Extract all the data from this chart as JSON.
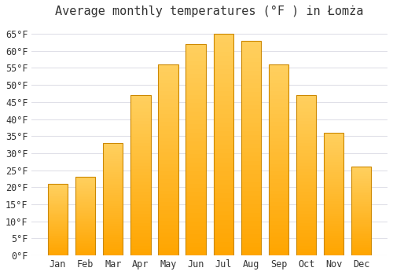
{
  "title": "Average monthly temperatures (°F ) in Łomża",
  "months": [
    "Jan",
    "Feb",
    "Mar",
    "Apr",
    "May",
    "Jun",
    "Jul",
    "Aug",
    "Sep",
    "Oct",
    "Nov",
    "Dec"
  ],
  "values": [
    21,
    23,
    33,
    47,
    56,
    62,
    65,
    63,
    56,
    47,
    36,
    26
  ],
  "bar_color_top": "#FFD060",
  "bar_color_bottom": "#FFA500",
  "bar_edge_color": "#CC8800",
  "background_color": "#FFFFFF",
  "grid_color": "#E0E0E8",
  "text_color": "#333333",
  "ylim": [
    0,
    68
  ],
  "yticks": [
    0,
    5,
    10,
    15,
    20,
    25,
    30,
    35,
    40,
    45,
    50,
    55,
    60,
    65
  ],
  "title_fontsize": 11,
  "tick_fontsize": 8.5,
  "bar_width": 0.72
}
